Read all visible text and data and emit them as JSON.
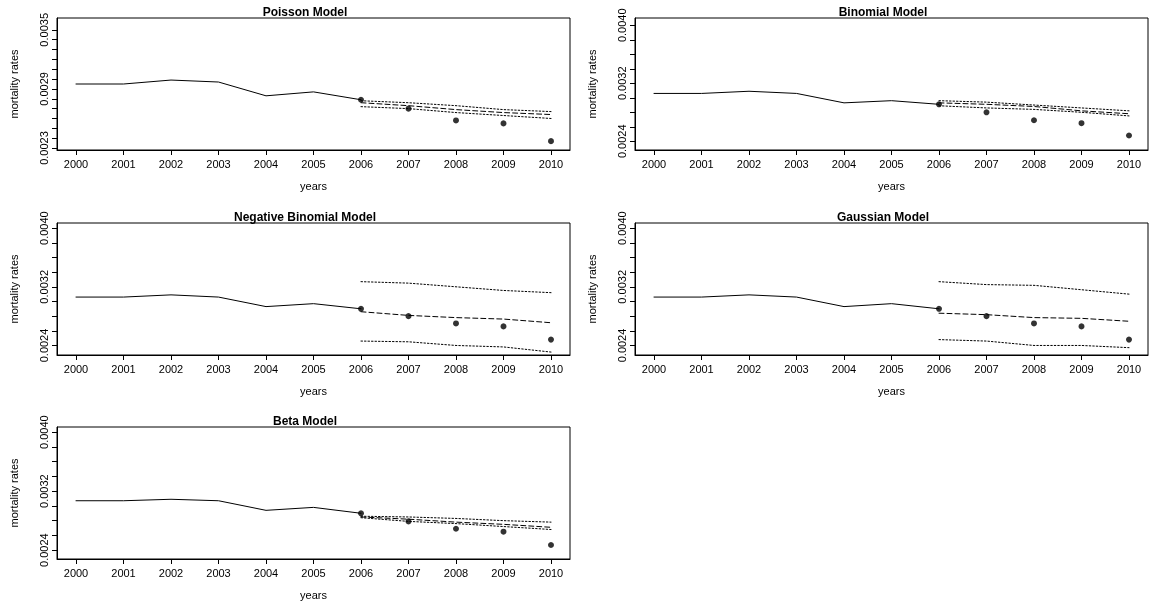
{
  "chart_data": [
    {
      "type": "line",
      "title": "Poisson Model",
      "xlabel": "years",
      "ylabel": "mortality rates",
      "xlim": [
        1999.6,
        2010.4
      ],
      "xticks": [
        2000,
        2001,
        2002,
        2003,
        2004,
        2005,
        2006,
        2007,
        2008,
        2009,
        2010
      ],
      "ylim": [
        0.00228,
        0.00362
      ],
      "yticks": [
        0.0023,
        {
          "value": 0.0024,
          "label": null
        },
        {
          "value": 0.0025,
          "label": null
        },
        {
          "value": 0.0026,
          "label": null
        },
        {
          "value": 0.0027,
          "label": null
        },
        {
          "value": 0.0028,
          "label": null
        },
        0.0029,
        {
          "value": 0.003,
          "label": null
        },
        {
          "value": 0.0031,
          "label": null
        },
        {
          "value": 0.0032,
          "label": null
        },
        {
          "value": 0.0033,
          "label": null
        },
        {
          "value": 0.0034,
          "label": null
        },
        0.0035
      ],
      "grid": false,
      "series": [
        {
          "type": "line",
          "line_style": "solid",
          "color": "#000000",
          "x": [
            2000,
            2001,
            2002,
            2003,
            2004,
            2005,
            2006
          ],
          "values": [
            0.00295,
            0.00295,
            0.00299,
            0.00297,
            0.00283,
            0.00287,
            0.00279
          ]
        },
        {
          "type": "scatter",
          "color": "#000000",
          "x": [
            2006,
            2007,
            2008,
            2009,
            2010
          ],
          "values": [
            0.00279,
            0.0027,
            0.00258,
            0.00255,
            0.00237
          ]
        },
        {
          "type": "line",
          "line_style": "dashed",
          "color": "#000000",
          "x": [
            2006,
            2007,
            2008,
            2009,
            2010
          ],
          "values": [
            0.00276,
            0.00273,
            0.00269,
            0.00266,
            0.00264
          ]
        },
        {
          "type": "line",
          "line_style": "dotted",
          "color": "#000000",
          "x": [
            2006,
            2007,
            2008,
            2009,
            2010
          ],
          "values": [
            0.00278,
            0.00276,
            0.00273,
            0.00269,
            0.00267
          ]
        },
        {
          "type": "line",
          "line_style": "dotted",
          "color": "#000000",
          "x": [
            2006,
            2007,
            2008,
            2009,
            2010
          ],
          "values": [
            0.00272,
            0.0027,
            0.00266,
            0.00263,
            0.0026
          ]
        }
      ]
    },
    {
      "type": "line",
      "title": "Binomial Model",
      "xlabel": "years",
      "ylabel": "mortality rates",
      "xlim": [
        1999.6,
        2010.4
      ],
      "xticks": [
        2000,
        2001,
        2002,
        2003,
        2004,
        2005,
        2006,
        2007,
        2008,
        2009,
        2010
      ],
      "ylim": [
        0.00228,
        0.0041
      ],
      "yticks": [
        0.0024,
        {
          "value": 0.0026,
          "label": null
        },
        {
          "value": 0.0028,
          "label": null
        },
        {
          "value": 0.003,
          "label": null
        },
        0.0032,
        {
          "value": 0.0034,
          "label": null
        },
        {
          "value": 0.0036,
          "label": null
        },
        {
          "value": 0.0038,
          "label": null
        },
        {
          "value": 0.004,
          "label": "0.0040"
        }
      ],
      "grid": false,
      "series": [
        {
          "type": "line",
          "line_style": "solid",
          "color": "#000000",
          "x": [
            2000,
            2001,
            2002,
            2003,
            2004,
            2005,
            2006
          ],
          "values": [
            0.00306,
            0.00306,
            0.00309,
            0.00306,
            0.00293,
            0.00296,
            0.00291
          ]
        },
        {
          "type": "scatter",
          "color": "#000000",
          "x": [
            2006,
            2007,
            2008,
            2009,
            2010
          ],
          "values": [
            0.00291,
            0.0028,
            0.00269,
            0.00265,
            0.00248
          ]
        },
        {
          "type": "line",
          "line_style": "dashed",
          "color": "#000000",
          "x": [
            2006,
            2007,
            2008,
            2009,
            2010
          ],
          "values": [
            0.00293,
            0.00291,
            0.00288,
            0.00282,
            0.00278
          ]
        },
        {
          "type": "line",
          "line_style": "dotted",
          "color": "#000000",
          "x": [
            2006,
            2007,
            2008,
            2009,
            2010
          ],
          "values": [
            0.00296,
            0.00294,
            0.0029,
            0.00286,
            0.00282
          ]
        },
        {
          "type": "line",
          "line_style": "dotted",
          "color": "#000000",
          "x": [
            2006,
            2007,
            2008,
            2009,
            2010
          ],
          "values": [
            0.00289,
            0.00286,
            0.00284,
            0.0028,
            0.00275
          ]
        }
      ]
    },
    {
      "type": "line",
      "title": "Negative Binomial Model",
      "xlabel": "years",
      "ylabel": "mortality rates",
      "xlim": [
        1999.6,
        2010.4
      ],
      "xticks": [
        2000,
        2001,
        2002,
        2003,
        2004,
        2005,
        2006,
        2007,
        2008,
        2009,
        2010
      ],
      "ylim": [
        0.00227,
        0.00407
      ],
      "yticks": [
        0.0024,
        {
          "value": 0.0026,
          "label": null
        },
        {
          "value": 0.0028,
          "label": null
        },
        {
          "value": 0.003,
          "label": null
        },
        0.0032,
        {
          "value": 0.0034,
          "label": null
        },
        {
          "value": 0.0036,
          "label": null
        },
        {
          "value": 0.0038,
          "label": null
        },
        {
          "value": 0.004,
          "label": "0.0040"
        }
      ],
      "grid": false,
      "series": [
        {
          "type": "line",
          "line_style": "solid",
          "color": "#000000",
          "x": [
            2000,
            2001,
            2002,
            2003,
            2004,
            2005,
            2006
          ],
          "values": [
            0.00306,
            0.00306,
            0.00309,
            0.00306,
            0.00293,
            0.00297,
            0.0029
          ]
        },
        {
          "type": "scatter",
          "color": "#000000",
          "x": [
            2006,
            2007,
            2008,
            2009,
            2010
          ],
          "values": [
            0.0029,
            0.0028,
            0.0027,
            0.00266,
            0.00248
          ]
        },
        {
          "type": "line",
          "line_style": "dashed",
          "color": "#000000",
          "x": [
            2006,
            2007,
            2008,
            2009,
            2010
          ],
          "values": [
            0.00286,
            0.00281,
            0.00278,
            0.00276,
            0.00271
          ]
        },
        {
          "type": "line",
          "line_style": "dotted",
          "color": "#000000",
          "x": [
            2006,
            2007,
            2008,
            2009,
            2010
          ],
          "values": [
            0.00327,
            0.00325,
            0.0032,
            0.00315,
            0.00312
          ]
        },
        {
          "type": "line",
          "line_style": "dotted",
          "color": "#000000",
          "x": [
            2006,
            2007,
            2008,
            2009,
            2010
          ],
          "values": [
            0.00246,
            0.00245,
            0.0024,
            0.00238,
            0.00231
          ]
        }
      ]
    },
    {
      "type": "line",
      "title": "Gaussian Model",
      "xlabel": "years",
      "ylabel": "mortality rates",
      "xlim": [
        1999.6,
        2010.4
      ],
      "xticks": [
        2000,
        2001,
        2002,
        2003,
        2004,
        2005,
        2006,
        2007,
        2008,
        2009,
        2010
      ],
      "ylim": [
        0.00227,
        0.00407
      ],
      "yticks": [
        0.0024,
        {
          "value": 0.0026,
          "label": null
        },
        {
          "value": 0.0028,
          "label": null
        },
        {
          "value": 0.003,
          "label": null
        },
        0.0032,
        {
          "value": 0.0034,
          "label": null
        },
        {
          "value": 0.0036,
          "label": null
        },
        {
          "value": 0.0038,
          "label": null
        },
        {
          "value": 0.004,
          "label": "0.0040"
        }
      ],
      "grid": false,
      "series": [
        {
          "type": "line",
          "line_style": "solid",
          "color": "#000000",
          "x": [
            2000,
            2001,
            2002,
            2003,
            2004,
            2005,
            2006
          ],
          "values": [
            0.00306,
            0.00306,
            0.00309,
            0.00306,
            0.00293,
            0.00297,
            0.0029
          ]
        },
        {
          "type": "scatter",
          "color": "#000000",
          "x": [
            2006,
            2007,
            2008,
            2009,
            2010
          ],
          "values": [
            0.0029,
            0.0028,
            0.0027,
            0.00266,
            0.00248
          ]
        },
        {
          "type": "line",
          "line_style": "dashed",
          "color": "#000000",
          "x": [
            2006,
            2007,
            2008,
            2009,
            2010
          ],
          "values": [
            0.00284,
            0.00282,
            0.00278,
            0.00277,
            0.00273
          ]
        },
        {
          "type": "line",
          "line_style": "dotted",
          "color": "#000000",
          "x": [
            2006,
            2007,
            2008,
            2009,
            2010
          ],
          "values": [
            0.00327,
            0.00323,
            0.00322,
            0.00316,
            0.0031
          ]
        },
        {
          "type": "line",
          "line_style": "dotted",
          "color": "#000000",
          "x": [
            2006,
            2007,
            2008,
            2009,
            2010
          ],
          "values": [
            0.00248,
            0.00246,
            0.0024,
            0.0024,
            0.00237
          ]
        }
      ]
    },
    {
      "type": "line",
      "title": "Beta Model",
      "xlabel": "years",
      "ylabel": "mortality rates",
      "xlim": [
        1999.6,
        2010.4
      ],
      "xticks": [
        2000,
        2001,
        2002,
        2003,
        2004,
        2005,
        2006,
        2007,
        2008,
        2009,
        2010
      ],
      "ylim": [
        0.00228,
        0.00407
      ],
      "yticks": [
        0.0024,
        {
          "value": 0.0026,
          "label": null
        },
        {
          "value": 0.0028,
          "label": null
        },
        {
          "value": 0.003,
          "label": null
        },
        0.0032,
        {
          "value": 0.0034,
          "label": null
        },
        {
          "value": 0.0036,
          "label": null
        },
        {
          "value": 0.0038,
          "label": null
        },
        {
          "value": 0.004,
          "label": "0.0040"
        }
      ],
      "grid": false,
      "series": [
        {
          "type": "line",
          "line_style": "solid",
          "color": "#000000",
          "x": [
            2000,
            2001,
            2002,
            2003,
            2004,
            2005,
            2006
          ],
          "values": [
            0.00307,
            0.00307,
            0.00309,
            0.00307,
            0.00294,
            0.00298,
            0.0029
          ]
        },
        {
          "type": "scatter",
          "color": "#000000",
          "x": [
            2006,
            2007,
            2008,
            2009,
            2010
          ],
          "values": [
            0.0029,
            0.00279,
            0.00269,
            0.00265,
            0.00247
          ]
        },
        {
          "type": "line",
          "line_style": "dashed",
          "color": "#000000",
          "x": [
            2006,
            2007,
            2008,
            2009,
            2010
          ],
          "values": [
            0.00285,
            0.00282,
            0.00278,
            0.00275,
            0.00271
          ]
        },
        {
          "type": "line",
          "line_style": "dotted",
          "color": "#000000",
          "x": [
            2006,
            2007,
            2008,
            2009,
            2010
          ],
          "values": [
            0.00286,
            0.00285,
            0.00283,
            0.0028,
            0.00278
          ]
        },
        {
          "type": "line",
          "line_style": "dotted",
          "color": "#000000",
          "x": [
            2006,
            2007,
            2008,
            2009,
            2010
          ],
          "values": [
            0.00284,
            0.00279,
            0.00276,
            0.00272,
            0.00268
          ]
        }
      ]
    }
  ]
}
